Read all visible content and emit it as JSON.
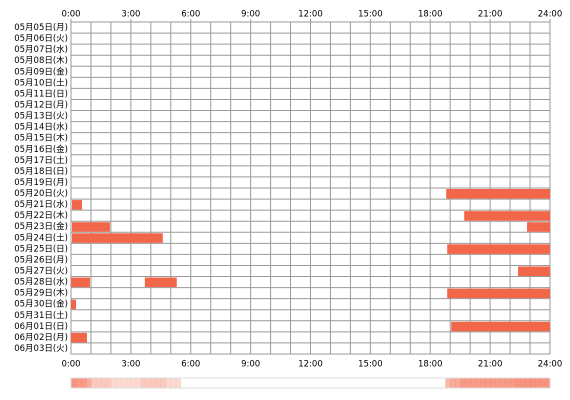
{
  "chart_data": {
    "type": "timeline",
    "categories": [
      "05月05日(月)",
      "05月06日(火)",
      "05月07日(水)",
      "05月08日(木)",
      "05月09日(金)",
      "05月10日(土)",
      "05月11日(日)",
      "05月12日(月)",
      "05月13日(火)",
      "05月14日(水)",
      "05月15日(木)",
      "05月16日(金)",
      "05月17日(土)",
      "05月18日(日)",
      "05月19日(月)",
      "05月20日(火)",
      "05月21日(水)",
      "05月22日(木)",
      "05月23日(金)",
      "05月24日(土)",
      "05月25日(日)",
      "05月26日(月)",
      "05月27日(火)",
      "05月28日(水)",
      "05月29日(木)",
      "05月30日(金)",
      "05月31日(土)",
      "06月01日(日)",
      "06月02日(月)",
      "06月03日(火)"
    ],
    "intervals": [
      [],
      [],
      [],
      [],
      [],
      [],
      [],
      [],
      [],
      [],
      [],
      [],
      [],
      [],
      [],
      [
        [
          18.8,
          24
        ]
      ],
      [
        [
          0.05,
          0.55
        ]
      ],
      [
        [
          19.7,
          24
        ]
      ],
      [
        [
          0.05,
          1.95
        ],
        [
          22.85,
          24
        ]
      ],
      [
        [
          0.05,
          4.6
        ]
      ],
      [
        [
          18.85,
          24
        ]
      ],
      [],
      [
        [
          22.4,
          24
        ]
      ],
      [
        [
          0,
          0.95
        ],
        [
          3.7,
          5.3
        ]
      ],
      [
        [
          18.85,
          24
        ]
      ],
      [
        [
          0,
          0.25
        ]
      ],
      [],
      [
        [
          19.05,
          24
        ]
      ],
      [
        [
          0,
          0.8
        ]
      ],
      []
    ],
    "color": "#f26649",
    "xlim": [
      0,
      24
    ],
    "xticks": [
      {
        "value": 0,
        "label": "0:00"
      },
      {
        "value": 3,
        "label": "3:00"
      },
      {
        "value": 6,
        "label": "6:00"
      },
      {
        "value": 9,
        "label": "9:00"
      },
      {
        "value": 12,
        "label": "12:00"
      },
      {
        "value": 15,
        "label": "15:00"
      },
      {
        "value": 18,
        "label": "18:00"
      },
      {
        "value": 21,
        "label": "21:00"
      },
      {
        "value": 24,
        "label": "24:00"
      }
    ],
    "grid": true
  }
}
